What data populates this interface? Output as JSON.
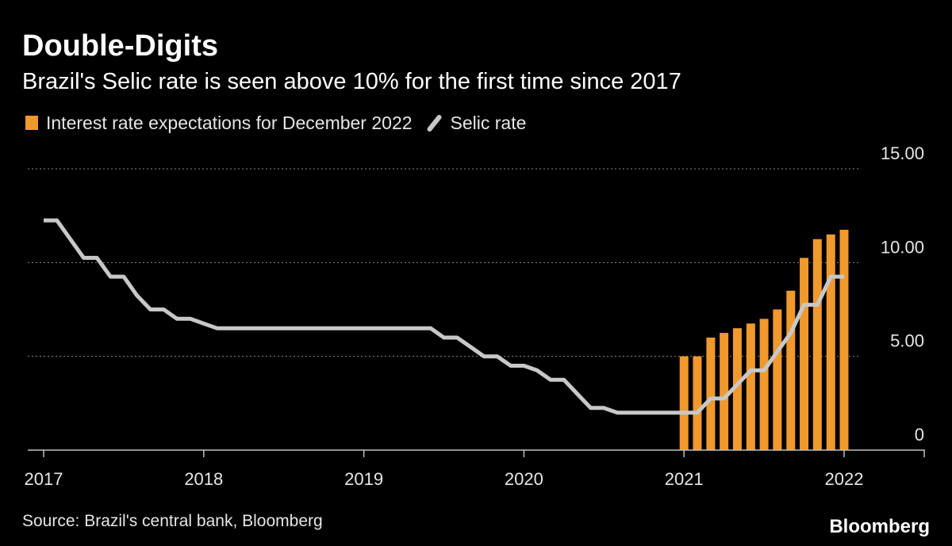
{
  "header": {
    "title": "Double-Digits",
    "subtitle": "Brazil's Selic rate is seen above 10% for the first time since 2017"
  },
  "colors": {
    "bar": "#f0992c",
    "line": "#c8c8c8",
    "grid": "#8a8a8a",
    "axis": "#bfbfbf",
    "background": "#000000"
  },
  "chart_data": {
    "type": "bar",
    "title": "Double-Digits",
    "subtitle": "Brazil's Selic rate is seen above 10% for the first time since 2017",
    "xlabel": "",
    "ylabel": "",
    "xlim": [
      2017,
      2022.5
    ],
    "ylim": [
      0,
      15
    ],
    "x_ticks": [
      "2017",
      "2018",
      "2019",
      "2020",
      "2021",
      "2022"
    ],
    "y_ticks": [
      "0",
      "5.00",
      "10.00",
      "15.00"
    ],
    "grid": true,
    "legend_position": "top-left",
    "series": [
      {
        "name": "Interest rate expectations for December 2022",
        "type": "bar",
        "x": [
          2021.0,
          2021.083,
          2021.167,
          2021.25,
          2021.333,
          2021.417,
          2021.5,
          2021.583,
          2021.667,
          2021.75,
          2021.833,
          2021.917,
          2022.0
        ],
        "values": [
          5.0,
          5.0,
          6.0,
          6.25,
          6.5,
          6.75,
          7.0,
          7.5,
          8.5,
          10.25,
          11.25,
          11.5,
          11.75
        ]
      },
      {
        "name": "Selic rate",
        "type": "line",
        "x": [
          2017.0,
          2017.083,
          2017.25,
          2017.333,
          2017.417,
          2017.5,
          2017.583,
          2017.667,
          2017.75,
          2017.833,
          2017.917,
          2018.0,
          2018.083,
          2018.167,
          2019.417,
          2019.5,
          2019.583,
          2019.667,
          2019.75,
          2019.833,
          2019.917,
          2020.0,
          2020.083,
          2020.167,
          2020.25,
          2020.333,
          2020.417,
          2020.5,
          2020.583,
          2020.667,
          2020.75,
          2020.833,
          2020.917,
          2021.0,
          2021.083,
          2021.167,
          2021.25,
          2021.333,
          2021.417,
          2021.5,
          2021.583,
          2021.667,
          2021.75,
          2021.833,
          2021.917,
          2022.0
        ],
        "values": [
          12.25,
          12.25,
          10.25,
          10.25,
          9.25,
          9.25,
          8.25,
          7.5,
          7.5,
          7.0,
          7.0,
          6.75,
          6.5,
          6.5,
          6.5,
          6.0,
          6.0,
          5.5,
          5.0,
          5.0,
          4.5,
          4.5,
          4.25,
          3.75,
          3.75,
          3.0,
          2.25,
          2.25,
          2.0,
          2.0,
          2.0,
          2.0,
          2.0,
          2.0,
          2.0,
          2.75,
          2.75,
          3.5,
          4.25,
          4.25,
          5.25,
          6.25,
          7.75,
          7.75,
          9.25,
          9.25
        ]
      }
    ]
  },
  "footer": {
    "source": "Source: Brazil's central bank, Bloomberg",
    "logo": "Bloomberg"
  }
}
